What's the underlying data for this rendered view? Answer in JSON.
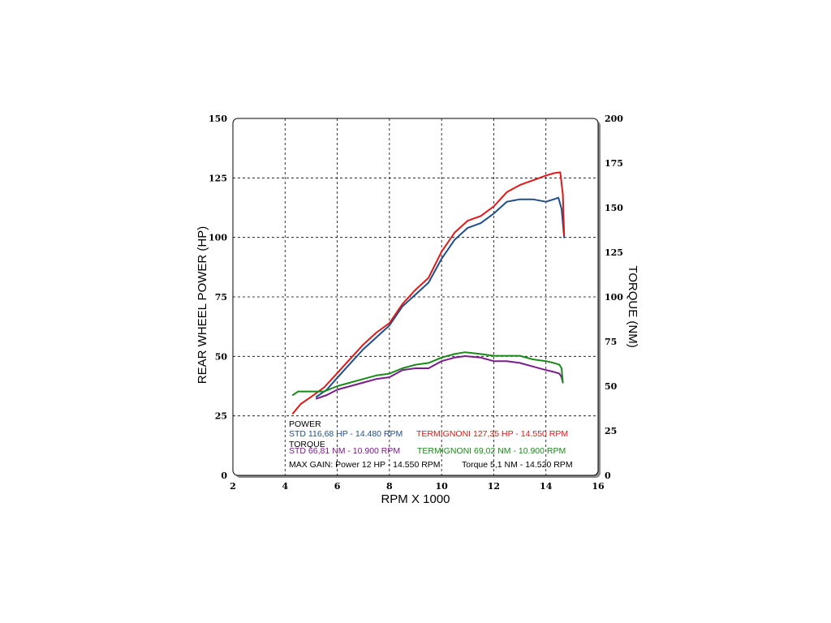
{
  "chart_data": {
    "type": "line",
    "xlabel": "RPM X 1000",
    "ylabel": "REAR WHEEL POWER (HP)",
    "y2label": "TORQUE (NM)",
    "xlim": [
      2,
      16
    ],
    "ylim": [
      0,
      150
    ],
    "y2lim": [
      0,
      200
    ],
    "x_ticks": [
      "2",
      "4",
      "6",
      "8",
      "10",
      "12",
      "14",
      "16"
    ],
    "y_ticks": [
      "0",
      "25",
      "50",
      "75",
      "100",
      "125",
      "150"
    ],
    "y2_ticks": [
      "0",
      "25",
      "50",
      "75",
      "100",
      "125",
      "150",
      "175",
      "200"
    ],
    "grid": true,
    "series": [
      {
        "name": "STD",
        "quantity": "power",
        "axis": "left",
        "color": "#1f4e8c",
        "x": [
          5.2,
          5.6,
          6.0,
          6.5,
          7.0,
          7.5,
          8.0,
          8.5,
          9.0,
          9.5,
          10.0,
          10.5,
          11.0,
          11.5,
          12.0,
          12.5,
          13.0,
          13.5,
          14.0,
          14.3,
          14.48,
          14.6,
          14.7
        ],
        "y": [
          33,
          36,
          41,
          47,
          53,
          58,
          63,
          71,
          76,
          81,
          91,
          99,
          104,
          106,
          110,
          115,
          116,
          116,
          115,
          116,
          116.68,
          112,
          100
        ]
      },
      {
        "name": "TERMIGNONI",
        "quantity": "power",
        "axis": "left",
        "color": "#e01818",
        "x": [
          4.3,
          4.6,
          5.0,
          5.5,
          6.0,
          6.5,
          7.0,
          7.5,
          8.0,
          8.5,
          9.0,
          9.5,
          10.0,
          10.5,
          11.0,
          11.5,
          12.0,
          12.5,
          13.0,
          13.5,
          14.0,
          14.3,
          14.55,
          14.65,
          14.7
        ],
        "y": [
          26,
          30,
          33,
          37,
          43,
          49,
          55,
          60,
          64,
          72,
          78,
          83,
          94,
          102,
          107,
          109,
          113,
          119,
          122,
          124,
          126,
          127,
          127.35,
          118,
          101
        ]
      },
      {
        "name": "STD",
        "quantity": "torque",
        "axis": "right",
        "color": "#7a1a8c",
        "x": [
          5.2,
          5.6,
          6.0,
          6.5,
          7.0,
          7.5,
          8.0,
          8.5,
          9.0,
          9.5,
          10.0,
          10.5,
          10.9,
          11.5,
          12.0,
          12.5,
          13.0,
          13.5,
          14.0,
          14.3,
          14.52,
          14.6,
          14.65
        ],
        "y": [
          43,
          45,
          48,
          50,
          52,
          54,
          55,
          59,
          60,
          60,
          64,
          66,
          66.81,
          66,
          64,
          64,
          63,
          61,
          59,
          58,
          57,
          55,
          52
        ]
      },
      {
        "name": "TERMIGNONI",
        "quantity": "torque",
        "axis": "right",
        "color": "#1a8a1a",
        "x": [
          4.3,
          4.5,
          5.0,
          5.5,
          6.0,
          6.5,
          7.0,
          7.5,
          8.0,
          8.5,
          9.0,
          9.5,
          10.0,
          10.5,
          10.9,
          11.5,
          12.0,
          12.5,
          13.0,
          13.5,
          14.0,
          14.3,
          14.52,
          14.6,
          14.65
        ],
        "y": [
          45,
          47,
          47,
          47,
          50,
          52,
          54,
          56,
          57,
          60,
          62,
          63,
          66,
          68,
          69.02,
          68,
          67,
          67,
          67,
          65,
          64,
          63,
          62,
          60,
          52
        ]
      }
    ]
  },
  "legend": {
    "power_header": "POWER",
    "std_power": "STD 116,68 HP - 14.480 RPM",
    "term_power": "TERMIGNONI  127,35 HP - 14.550 RPM",
    "torque_header": "TORQUE",
    "std_torque": "STD  66,81 NM - 10.900 RPM",
    "term_torque": "TERMIGNONI   69,02 NM - 10.900 RPM",
    "gain_power": "MAX GAIN: Power 12 HP - 14.550 RPM",
    "gain_torque": "Torque 5,1 NM - 14.520 RPM"
  },
  "colors": {
    "std_power": "#1f4e8c",
    "term_power": "#e01818",
    "std_torque": "#7a1a8c",
    "term_torque": "#1a8a1a",
    "header": "#000000"
  }
}
